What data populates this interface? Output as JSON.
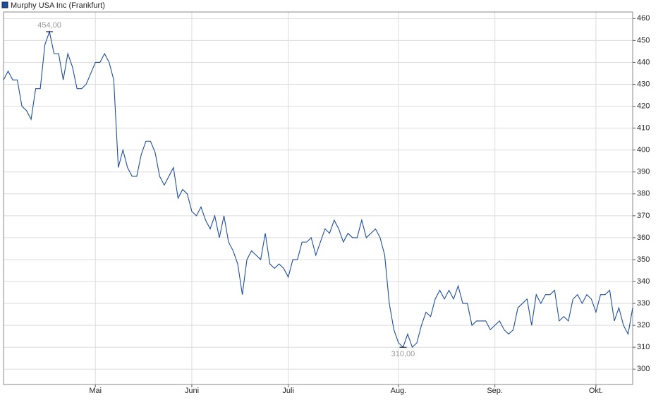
{
  "chart_data": {
    "type": "line",
    "categories": [
      null,
      null,
      null,
      null,
      null,
      null,
      null,
      null,
      null,
      null,
      null,
      null,
      null,
      null,
      null,
      null,
      null,
      null,
      null,
      null,
      "Mai",
      null,
      null,
      null,
      null,
      null,
      null,
      null,
      null,
      null,
      null,
      null,
      null,
      null,
      null,
      null,
      null,
      null,
      null,
      null,
      null,
      "Juni",
      null,
      null,
      null,
      null,
      null,
      null,
      null,
      null,
      null,
      null,
      null,
      null,
      null,
      null,
      null,
      null,
      null,
      null,
      null,
      null,
      "Juli",
      null,
      null,
      null,
      null,
      null,
      null,
      null,
      null,
      null,
      null,
      null,
      null,
      null,
      null,
      null,
      null,
      null,
      null,
      null,
      null,
      null,
      null,
      null,
      "Aug.",
      null,
      null,
      null,
      null,
      null,
      null,
      null,
      null,
      null,
      null,
      null,
      null,
      null,
      null,
      null,
      null,
      null,
      null,
      null,
      null,
      "Sep.",
      null,
      null,
      null,
      null,
      null,
      null,
      null,
      null,
      null,
      null,
      null,
      null,
      null,
      null,
      null,
      null,
      null,
      null,
      null,
      null,
      null,
      "Okt.",
      null,
      null,
      null,
      null,
      null,
      null,
      null,
      null
    ],
    "series": [
      {
        "name": "Murphy USA Inc (Frankfurt)",
        "color": "#1f4e9c",
        "values": [
          432,
          436,
          432,
          432,
          420,
          418,
          414,
          428,
          428,
          448,
          454,
          444,
          444,
          432,
          444,
          438,
          428,
          428,
          430,
          435,
          440,
          440,
          444,
          440,
          432,
          392,
          400,
          392,
          388,
          388,
          398,
          404,
          404,
          399,
          388,
          384,
          388,
          392,
          378,
          382,
          380,
          372,
          370,
          374,
          368,
          364,
          370,
          360,
          370,
          358,
          354,
          348,
          334,
          350,
          354,
          352,
          350,
          362,
          348,
          346,
          348,
          346,
          342,
          350,
          350,
          358,
          358,
          360,
          352,
          358,
          364,
          362,
          368,
          364,
          358,
          362,
          360,
          360,
          368,
          360,
          362,
          364,
          360,
          352,
          330,
          318,
          312,
          310,
          316,
          310,
          312,
          320,
          326,
          324,
          332,
          336,
          332,
          336,
          332,
          338,
          330,
          330,
          320,
          322,
          322,
          322,
          318,
          320,
          322,
          318,
          316,
          318,
          328,
          330,
          332,
          320,
          334,
          330,
          334,
          334,
          336,
          322,
          324,
          322,
          332,
          334,
          330,
          334,
          332,
          326,
          334,
          334,
          336,
          322,
          328,
          320,
          316,
          328
        ],
        "value_labels": [
          null,
          null,
          null,
          null,
          null,
          null,
          null,
          null,
          null,
          null,
          "454,00",
          null,
          null,
          null,
          null,
          null,
          null,
          null,
          null,
          null,
          null,
          null,
          null,
          null,
          null,
          null,
          null,
          null,
          null,
          null,
          null,
          null,
          null,
          null,
          null,
          null,
          null,
          null,
          null,
          null,
          null,
          null,
          null,
          null,
          null,
          null,
          null,
          null,
          null,
          null,
          null,
          null,
          null,
          null,
          null,
          null,
          null,
          null,
          null,
          null,
          null,
          null,
          null,
          null,
          null,
          null,
          null,
          null,
          null,
          null,
          null,
          null,
          null,
          null,
          null,
          null,
          null,
          null,
          null,
          null,
          null,
          null,
          null,
          null,
          null,
          null,
          null,
          "310,00",
          null,
          null,
          null,
          null,
          null,
          null,
          null,
          null,
          null,
          null,
          null,
          null,
          null,
          null,
          null,
          null,
          null,
          null,
          null,
          null,
          null,
          null,
          null,
          null,
          null,
          null,
          null,
          null,
          null,
          null,
          null,
          null,
          null,
          null,
          null,
          null,
          null,
          null,
          null,
          null,
          null,
          null,
          null,
          null,
          null,
          null,
          null,
          null,
          null,
          null
        ]
      }
    ],
    "ylim": [
      293,
      463
    ],
    "yticks": [
      300,
      310,
      320,
      330,
      340,
      350,
      360,
      370,
      380,
      390,
      400,
      410,
      420,
      430,
      440,
      450,
      460
    ],
    "grid": true
  }
}
